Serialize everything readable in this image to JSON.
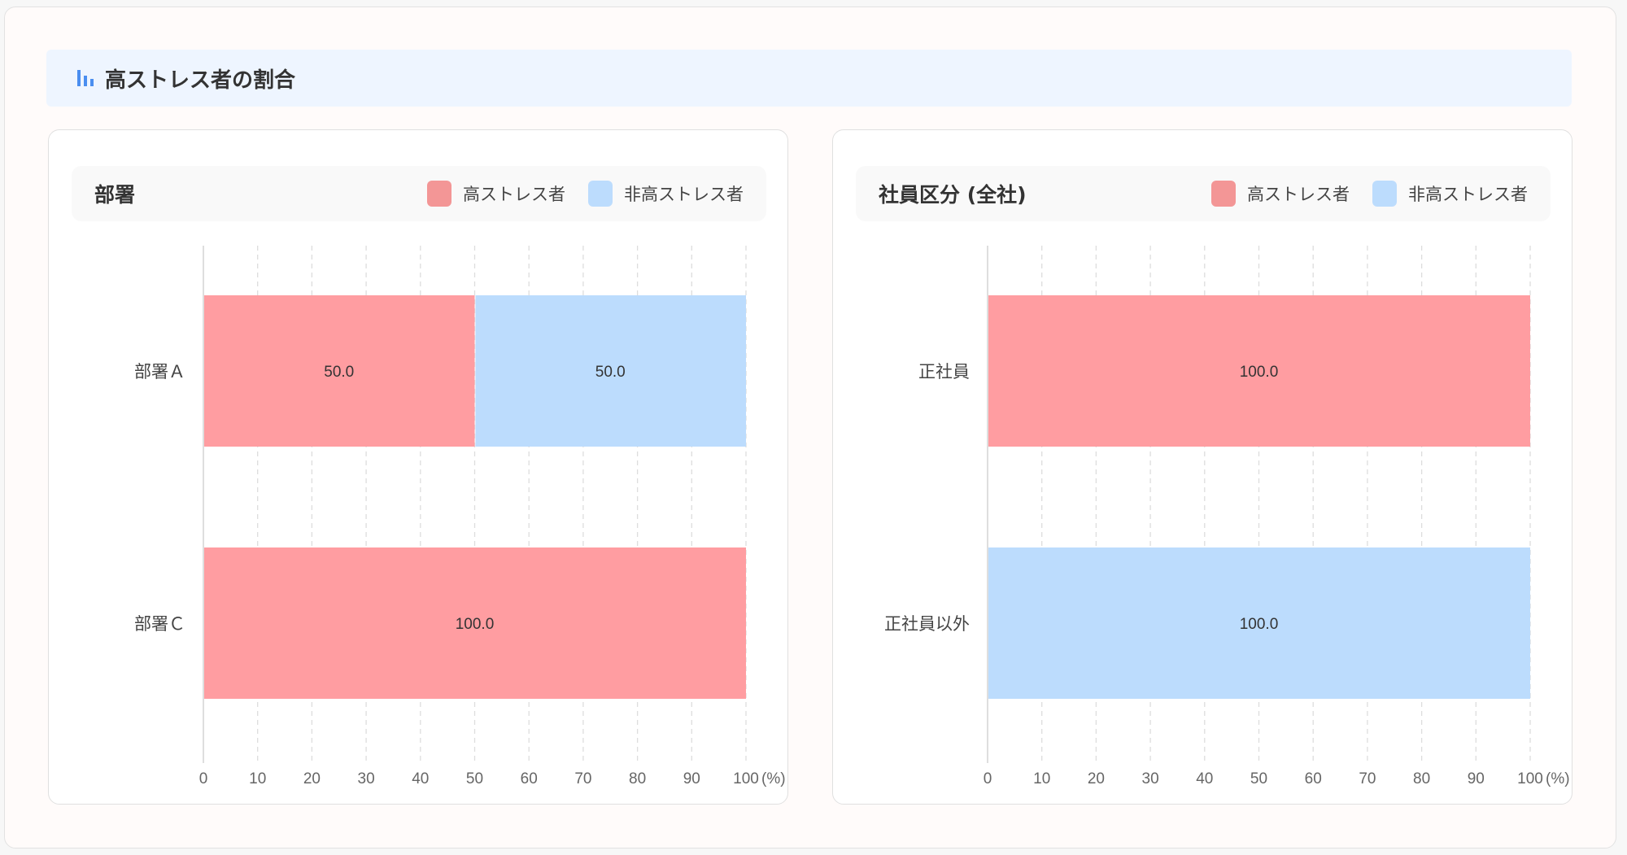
{
  "header": {
    "title": "高ストレス者の割合",
    "icon": "bar-chart-icon",
    "icon_color": "#4a8ef0"
  },
  "colors": {
    "high": "#ff9da1",
    "high_legend": "#f39696",
    "non_high": "#bcdcfd"
  },
  "legend": {
    "high": "高ストレス者",
    "non_high": "非高ストレス者"
  },
  "chart_data": [
    {
      "type": "bar",
      "orientation": "horizontal",
      "stacked": true,
      "title": "部署",
      "categories": [
        "部署Ａ",
        "部署Ｃ"
      ],
      "series": [
        {
          "name": "高ストレス者",
          "values": [
            50.0,
            100.0
          ]
        },
        {
          "name": "非高ストレス者",
          "values": [
            50.0,
            0
          ]
        }
      ],
      "data_labels": [
        [
          "50.0",
          "100.0"
        ],
        [
          "50.0",
          ""
        ]
      ],
      "xlim": [
        0,
        100
      ],
      "xticks": [
        "0",
        "10",
        "20",
        "30",
        "40",
        "50",
        "60",
        "70",
        "80",
        "90",
        "100"
      ],
      "xunit": "(%)",
      "grid": "vertical dashed",
      "legend_position": "top-right"
    },
    {
      "type": "bar",
      "orientation": "horizontal",
      "stacked": true,
      "title": "社員区分 (全社)",
      "categories": [
        "正社員",
        "正社員以外"
      ],
      "series": [
        {
          "name": "高ストレス者",
          "values": [
            100.0,
            0
          ]
        },
        {
          "name": "非高ストレス者",
          "values": [
            0,
            100.0
          ]
        }
      ],
      "data_labels": [
        [
          "100.0",
          ""
        ],
        [
          "",
          "100.0"
        ]
      ],
      "xlim": [
        0,
        100
      ],
      "xticks": [
        "0",
        "10",
        "20",
        "30",
        "40",
        "50",
        "60",
        "70",
        "80",
        "90",
        "100"
      ],
      "xunit": "(%)",
      "grid": "vertical dashed",
      "legend_position": "top-right"
    }
  ]
}
